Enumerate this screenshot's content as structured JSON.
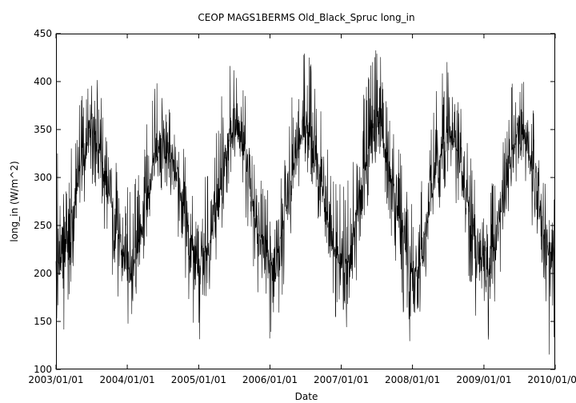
{
  "chart_data": {
    "type": "line",
    "title": "CEOP MAGS1BERMS Old_Black_Spruc  long_in",
    "xlabel": "Date",
    "ylabel": "long_in (W/m^2)",
    "x_range": [
      "2003/01/01",
      "2010/01/01"
    ],
    "x_ticks": [
      "2003/01/01",
      "2004/01/01",
      "2005/01/01",
      "2006/01/01",
      "2007/01/01",
      "2008/01/01",
      "2009/01/01",
      "2010/01/01"
    ],
    "ylim": [
      100,
      450
    ],
    "y_ticks": [
      100,
      150,
      200,
      250,
      300,
      350,
      400,
      450
    ],
    "grid": false,
    "line_color": "#000000",
    "series": [
      {
        "sampling": "monthly mean with min/max envelope (approximate)",
        "x": [
          "2003/01",
          "2003/02",
          "2003/03",
          "2003/04",
          "2003/05",
          "2003/06",
          "2003/07",
          "2003/08",
          "2003/09",
          "2003/10",
          "2003/11",
          "2003/12",
          "2004/01",
          "2004/02",
          "2004/03",
          "2004/04",
          "2004/05",
          "2004/06",
          "2004/07",
          "2004/08",
          "2004/09",
          "2004/10",
          "2004/11",
          "2004/12",
          "2005/01",
          "2005/02",
          "2005/03",
          "2005/04",
          "2005/05",
          "2005/06",
          "2005/07",
          "2005/08",
          "2005/09",
          "2005/10",
          "2005/11",
          "2005/12",
          "2006/01",
          "2006/02",
          "2006/03",
          "2006/04",
          "2006/05",
          "2006/06",
          "2006/07",
          "2006/08",
          "2006/09",
          "2006/10",
          "2006/11",
          "2006/12",
          "2007/01",
          "2007/02",
          "2007/03",
          "2007/04",
          "2007/05",
          "2007/06",
          "2007/07",
          "2007/08",
          "2007/09",
          "2007/10",
          "2007/11",
          "2007/12",
          "2008/01",
          "2008/02",
          "2008/03",
          "2008/04",
          "2008/05",
          "2008/06",
          "2008/07",
          "2008/08",
          "2008/09",
          "2008/10",
          "2008/11",
          "2008/12",
          "2009/01",
          "2009/02",
          "2009/03",
          "2009/04",
          "2009/05",
          "2009/06",
          "2009/07",
          "2009/08",
          "2009/09",
          "2009/10",
          "2009/11",
          "2009/12"
        ],
        "mean": [
          225,
          215,
          238,
          270,
          305,
          330,
          345,
          340,
          310,
          285,
          255,
          230,
          205,
          210,
          235,
          270,
          305,
          330,
          345,
          340,
          312,
          285,
          250,
          225,
          200,
          205,
          232,
          268,
          305,
          335,
          350,
          342,
          312,
          280,
          248,
          222,
          210,
          212,
          240,
          275,
          310,
          338,
          355,
          345,
          315,
          285,
          250,
          225,
          205,
          210,
          238,
          272,
          310,
          340,
          355,
          348,
          315,
          285,
          252,
          222,
          200,
          205,
          235,
          268,
          305,
          335,
          350,
          342,
          312,
          282,
          250,
          222,
          205,
          200,
          232,
          268,
          305,
          335,
          348,
          340,
          310,
          282,
          250,
          220
        ],
        "min": [
          150,
          120,
          165,
          200,
          245,
          280,
          290,
          285,
          250,
          220,
          180,
          150,
          135,
          140,
          160,
          210,
          250,
          275,
          290,
          285,
          250,
          220,
          170,
          145,
          125,
          135,
          165,
          205,
          245,
          285,
          300,
          290,
          255,
          215,
          170,
          140,
          130,
          140,
          165,
          215,
          255,
          285,
          300,
          295,
          255,
          220,
          175,
          150,
          135,
          140,
          165,
          210,
          255,
          285,
          300,
          295,
          255,
          220,
          170,
          140,
          120,
          135,
          165,
          200,
          245,
          280,
          295,
          285,
          250,
          215,
          170,
          140,
          130,
          130,
          160,
          205,
          250,
          280,
          295,
          285,
          250,
          215,
          165,
          110
        ],
        "max": [
          340,
          310,
          320,
          350,
          380,
          405,
          415,
          410,
          385,
          355,
          320,
          300,
          290,
          300,
          315,
          350,
          385,
          400,
          412,
          405,
          380,
          355,
          320,
          295,
          285,
          300,
          315,
          350,
          390,
          415,
          420,
          410,
          385,
          350,
          315,
          290,
          300,
          305,
          320,
          355,
          395,
          425,
          440,
          420,
          390,
          355,
          320,
          295,
          295,
          305,
          320,
          350,
          395,
          425,
          438,
          420,
          390,
          355,
          325,
          290,
          280,
          295,
          315,
          350,
          390,
          415,
          423,
          412,
          385,
          350,
          315,
          285,
          290,
          285,
          315,
          350,
          385,
          410,
          412,
          405,
          380,
          350,
          315,
          285
        ]
      }
    ]
  }
}
